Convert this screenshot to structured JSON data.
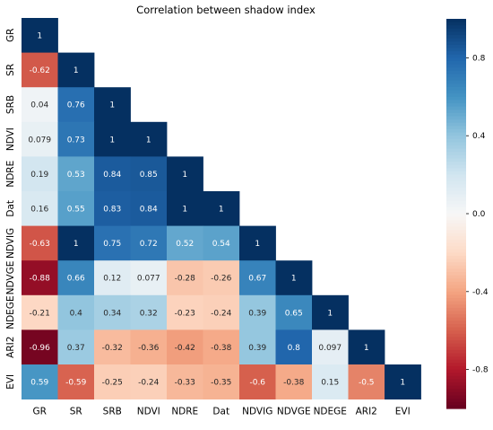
{
  "chart_data": {
    "type": "heatmap",
    "title": "Correlation between shadow index",
    "labels": [
      "GR",
      "SR",
      "SRB",
      "NDVI",
      "NDRE",
      "Dat",
      "NDVIG",
      "NDVGE",
      "NDEGE",
      "ARI2",
      "EVI"
    ],
    "matrix": [
      [
        1
      ],
      [
        -0.62,
        1
      ],
      [
        0.04,
        0.76,
        1
      ],
      [
        0.079,
        0.73,
        1,
        1
      ],
      [
        0.19,
        0.53,
        0.84,
        0.85,
        1
      ],
      [
        0.16,
        0.55,
        0.83,
        0.84,
        1,
        1
      ],
      [
        -0.63,
        1,
        0.75,
        0.72,
        0.52,
        0.54,
        1
      ],
      [
        -0.88,
        0.66,
        0.12,
        0.077,
        -0.28,
        -0.26,
        0.67,
        1
      ],
      [
        -0.21,
        0.4,
        0.34,
        0.32,
        -0.23,
        -0.24,
        0.39,
        0.65,
        1
      ],
      [
        -0.96,
        0.37,
        -0.32,
        -0.36,
        -0.42,
        -0.38,
        0.39,
        0.8,
        0.097,
        1
      ],
      [
        0.59,
        -0.59,
        -0.25,
        -0.24,
        -0.33,
        -0.35,
        -0.6,
        -0.38,
        0.15,
        -0.5,
        1
      ]
    ],
    "colorbar": {
      "min": -1,
      "max": 1,
      "ticks": [
        0.8,
        0.4,
        0.0,
        -0.4,
        -0.8
      ],
      "colormap": "RdBu"
    },
    "grid": false
  }
}
